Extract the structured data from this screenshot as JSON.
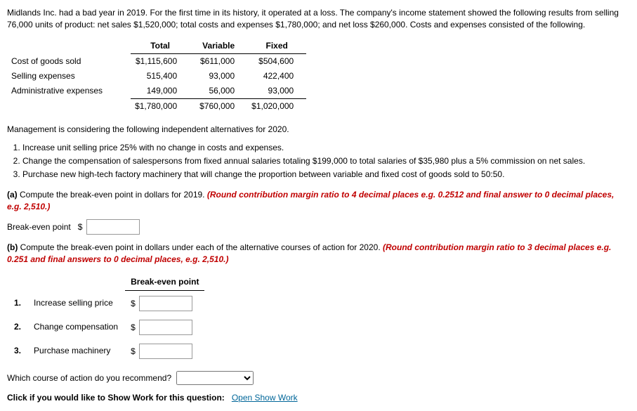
{
  "intro": "Midlands Inc. had a bad year in 2019. For the first time in its history, it operated at a loss. The company's income statement showed the following results from selling 76,000 units of product: net sales $1,520,000; total costs and expenses $1,780,000; and net loss $260,000. Costs and expenses consisted of the following.",
  "cost_table": {
    "headers": {
      "c1": "Total",
      "c2": "Variable",
      "c3": "Fixed"
    },
    "rows": [
      {
        "label": "Cost of goods sold",
        "total": "$1,115,600",
        "variable": "$611,000",
        "fixed": "$504,600"
      },
      {
        "label": "Selling expenses",
        "total": "515,400",
        "variable": "93,000",
        "fixed": "422,400"
      },
      {
        "label": "Administrative expenses",
        "total": "149,000",
        "variable": "56,000",
        "fixed": "93,000"
      }
    ],
    "totals": {
      "total": "$1,780,000",
      "variable": "$760,000",
      "fixed": "$1,020,000"
    }
  },
  "mgmt_line": "Management is considering the following independent alternatives for 2020.",
  "alternatives": [
    "Increase unit selling price 25% with no change in costs and expenses.",
    "Change the compensation of salespersons from fixed annual salaries totaling $199,000 to total salaries of $35,980 plus a 5% commission on net sales.",
    "Purchase new high-tech factory machinery that will change the proportion between variable and fixed cost of goods sold to 50:50."
  ],
  "part_a": {
    "prefix": "(a)",
    "text": "Compute the break-even point in dollars for 2019.",
    "hint": "(Round contribution margin ratio to 4 decimal places e.g. 0.2512 and final answer to 0 decimal places, e.g. 2,510.)",
    "label": "Break-even point"
  },
  "part_b": {
    "prefix": "(b)",
    "text": "Compute the break-even point in dollars under each of the alternative courses of action for 2020.",
    "hint": "(Round contribution margin ratio to 3 decimal places e.g. 0.251 and final answers to 0 decimal places, e.g. 2,510.)",
    "header": "Break-even point",
    "rows": [
      {
        "num": "1.",
        "label": "Increase selling price"
      },
      {
        "num": "2.",
        "label": "Change compensation"
      },
      {
        "num": "3.",
        "label": "Purchase machinery"
      }
    ]
  },
  "recommend_q": "Which course of action do you recommend?",
  "showwork": {
    "label": "Click if you would like to Show Work for this question:",
    "link": "Open Show Work"
  },
  "dollar": "$"
}
